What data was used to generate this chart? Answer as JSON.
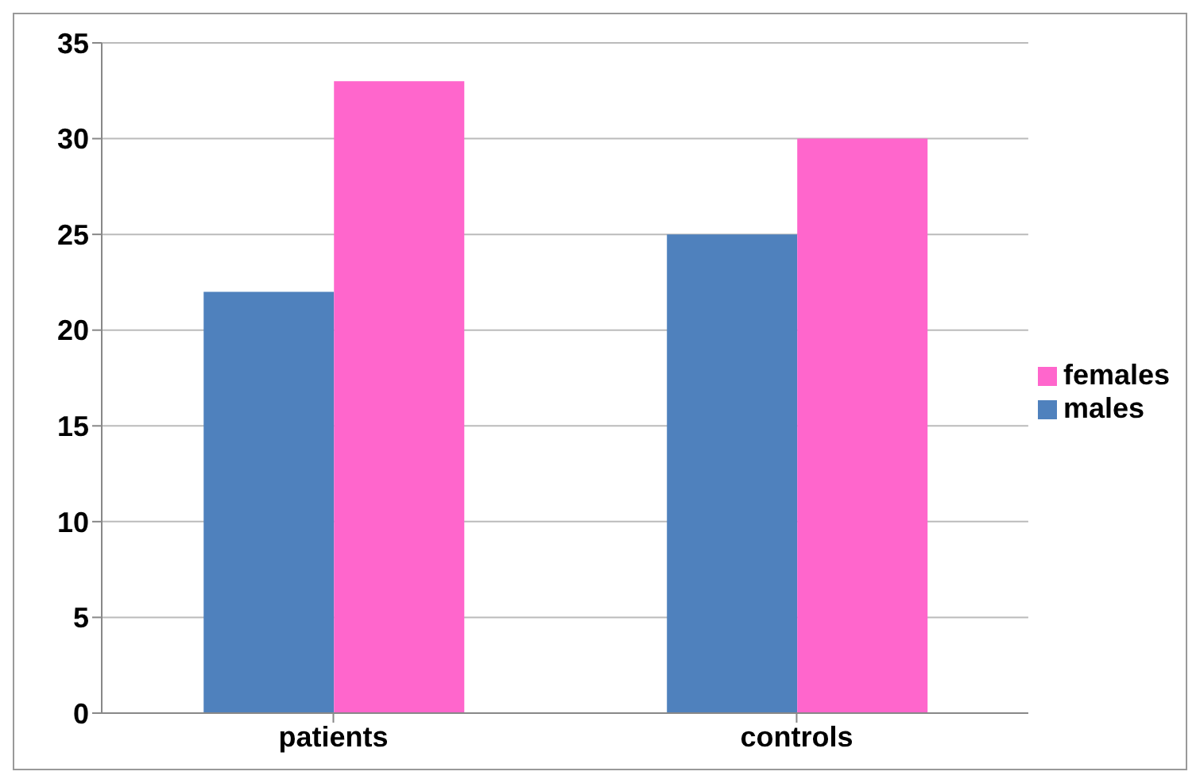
{
  "chart_data": {
    "type": "bar",
    "categories": [
      "patients",
      "controls"
    ],
    "series": [
      {
        "name": "males",
        "color": "#4f81bd",
        "values": [
          22,
          25
        ]
      },
      {
        "name": "females",
        "color": "#ff66cc",
        "values": [
          33,
          30
        ]
      }
    ],
    "ylim": [
      0,
      35
    ],
    "yticks": [
      0,
      5,
      10,
      15,
      20,
      25,
      30,
      35
    ],
    "grid": "y",
    "legend": "right"
  }
}
